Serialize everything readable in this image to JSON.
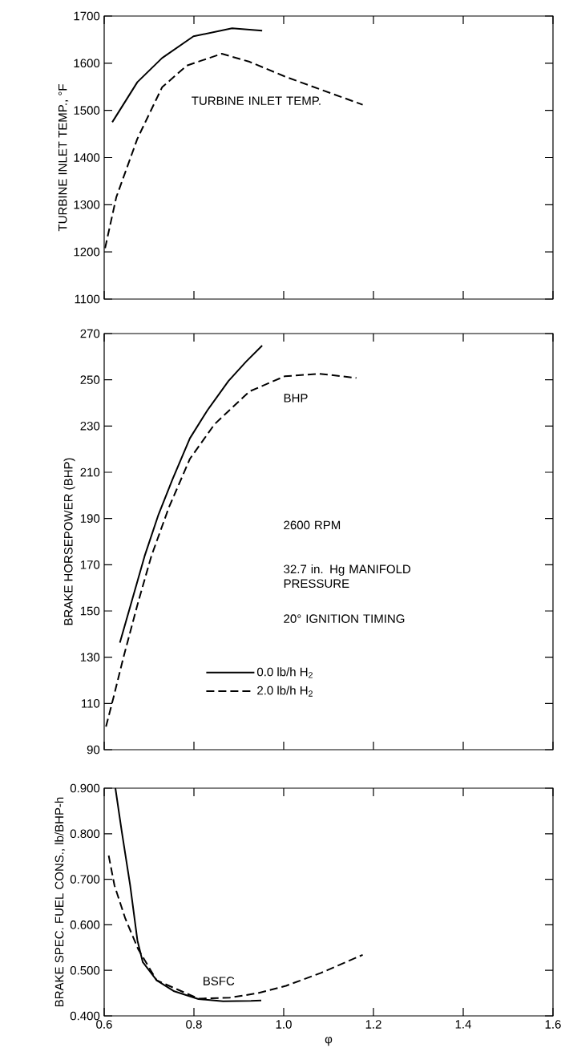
{
  "chart_data": [
    {
      "type": "line",
      "ylabel": "TURBINE INLET TEMP., °F",
      "annotations": [
        "TURBINE INLET TEMP."
      ],
      "xlim": [
        0.6,
        1.6
      ],
      "ylim": [
        1100,
        1700
      ],
      "xticks": [
        {
          "value": 0.6,
          "label": null
        },
        {
          "value": 0.8,
          "label": null
        },
        {
          "value": 1.0,
          "label": null
        },
        {
          "value": 1.2,
          "label": null
        },
        {
          "value": 1.4,
          "label": null
        },
        {
          "value": 1.6,
          "label": null
        }
      ],
      "yticks": [
        1100,
        1200,
        1300,
        1400,
        1500,
        1600,
        1700
      ],
      "tick_labels": "y",
      "grid": false,
      "legend": false,
      "series": [
        {
          "color": "#000000",
          "line_style": "solid",
          "x": [
            0.618,
            0.674,
            0.729,
            0.799,
            0.885,
            0.952
          ],
          "values": [
            1475,
            1560,
            1611,
            1657,
            1674,
            1669
          ]
        },
        {
          "color": "#000000",
          "line_style": "dashed",
          "x": [
            0.602,
            0.627,
            0.674,
            0.729,
            0.784,
            0.862,
            0.924,
            1.002,
            1.08,
            1.176
          ],
          "values": [
            1208,
            1316,
            1440,
            1549,
            1595,
            1620,
            1603,
            1572,
            1545,
            1512
          ]
        }
      ]
    },
    {
      "type": "line",
      "ylabel": "BRAKE HORSEPOWER (BHP)",
      "annotations": [
        "BHP",
        "2600 RPM",
        "32.7 in. Hg MANIFOLD PRESSURE",
        "20° IGNITION TIMING"
      ],
      "xlim": [
        0.6,
        1.6
      ],
      "ylim": [
        90,
        270
      ],
      "xticks": [
        {
          "value": 0.6,
          "label": null
        },
        {
          "value": 0.8,
          "label": null
        },
        {
          "value": 1.0,
          "label": null
        },
        {
          "value": 1.2,
          "label": null
        },
        {
          "value": 1.4,
          "label": null
        },
        {
          "value": 1.6,
          "label": null
        }
      ],
      "yticks": [
        90,
        110,
        130,
        150,
        170,
        190,
        210,
        230,
        250,
        270
      ],
      "tick_labels": "y",
      "grid": false,
      "legend": "bottom left",
      "series": [
        {
          "name": "0.0 lb/h H$_{2}$",
          "color": "#000000",
          "line_style": "solid",
          "x": [
            0.635,
            0.659,
            0.69,
            0.721,
            0.752,
            0.791,
            0.83,
            0.877,
            0.916,
            0.952
          ],
          "values": [
            136.3,
            152.6,
            173.7,
            191.7,
            206.8,
            224.7,
            236.8,
            249.5,
            257.8,
            264.8
          ]
        },
        {
          "name": "2.0 lb/h H$_{2}$",
          "color": "#000000",
          "line_style": "dashed",
          "x": [
            0.604,
            0.62,
            0.643,
            0.674,
            0.705,
            0.744,
            0.791,
            0.846,
            0.924,
            1.002,
            1.08,
            1.162
          ],
          "values": [
            100,
            112,
            130,
            152.6,
            173.7,
            194.7,
            215.8,
            230.8,
            245,
            251.5,
            252.6,
            250.8
          ]
        }
      ]
    },
    {
      "type": "line",
      "xlabel": "φ",
      "ylabel": "BRAKE SPEC. FUEL CONS., lb/BHP-h",
      "annotations": [
        "BSFC"
      ],
      "xlim": [
        0.6,
        1.6
      ],
      "ylim": [
        0.4,
        0.9
      ],
      "xticks": [
        {
          "value": 0.6,
          "label": "0.6"
        },
        {
          "value": 0.8,
          "label": "0.8"
        },
        {
          "value": 1.0,
          "label": "1.0"
        },
        {
          "value": 1.2,
          "label": "1.2"
        },
        {
          "value": 1.4,
          "label": "1.4"
        },
        {
          "value": 1.6,
          "label": "1.6"
        }
      ],
      "yticks": [
        {
          "value": 0.4,
          "label": "0.400"
        },
        {
          "value": 0.5,
          "label": "0.500"
        },
        {
          "value": 0.6,
          "label": "0.600"
        },
        {
          "value": 0.7,
          "label": "0.700"
        },
        {
          "value": 0.8,
          "label": "0.800"
        },
        {
          "value": 0.9,
          "label": "0.900"
        }
      ],
      "grid": false,
      "legend": false,
      "series": [
        {
          "color": "#000000",
          "line_style": "solid",
          "x": [
            0.625,
            0.639,
            0.658,
            0.674,
            0.686,
            0.717,
            0.756,
            0.81,
            0.865,
            0.927,
            0.95
          ],
          "values": [
            0.9,
            0.806,
            0.686,
            0.566,
            0.518,
            0.478,
            0.454,
            0.437,
            0.432,
            0.433,
            0.434
          ]
        },
        {
          "color": "#000000",
          "line_style": "dashed",
          "x": [
            0.61,
            0.623,
            0.647,
            0.676,
            0.717,
            0.81,
            0.88,
            0.942,
            1.005,
            1.082,
            1.176
          ],
          "values": [
            0.752,
            0.686,
            0.614,
            0.546,
            0.478,
            0.438,
            0.44,
            0.45,
            0.466,
            0.494,
            0.534
          ]
        }
      ]
    }
  ]
}
